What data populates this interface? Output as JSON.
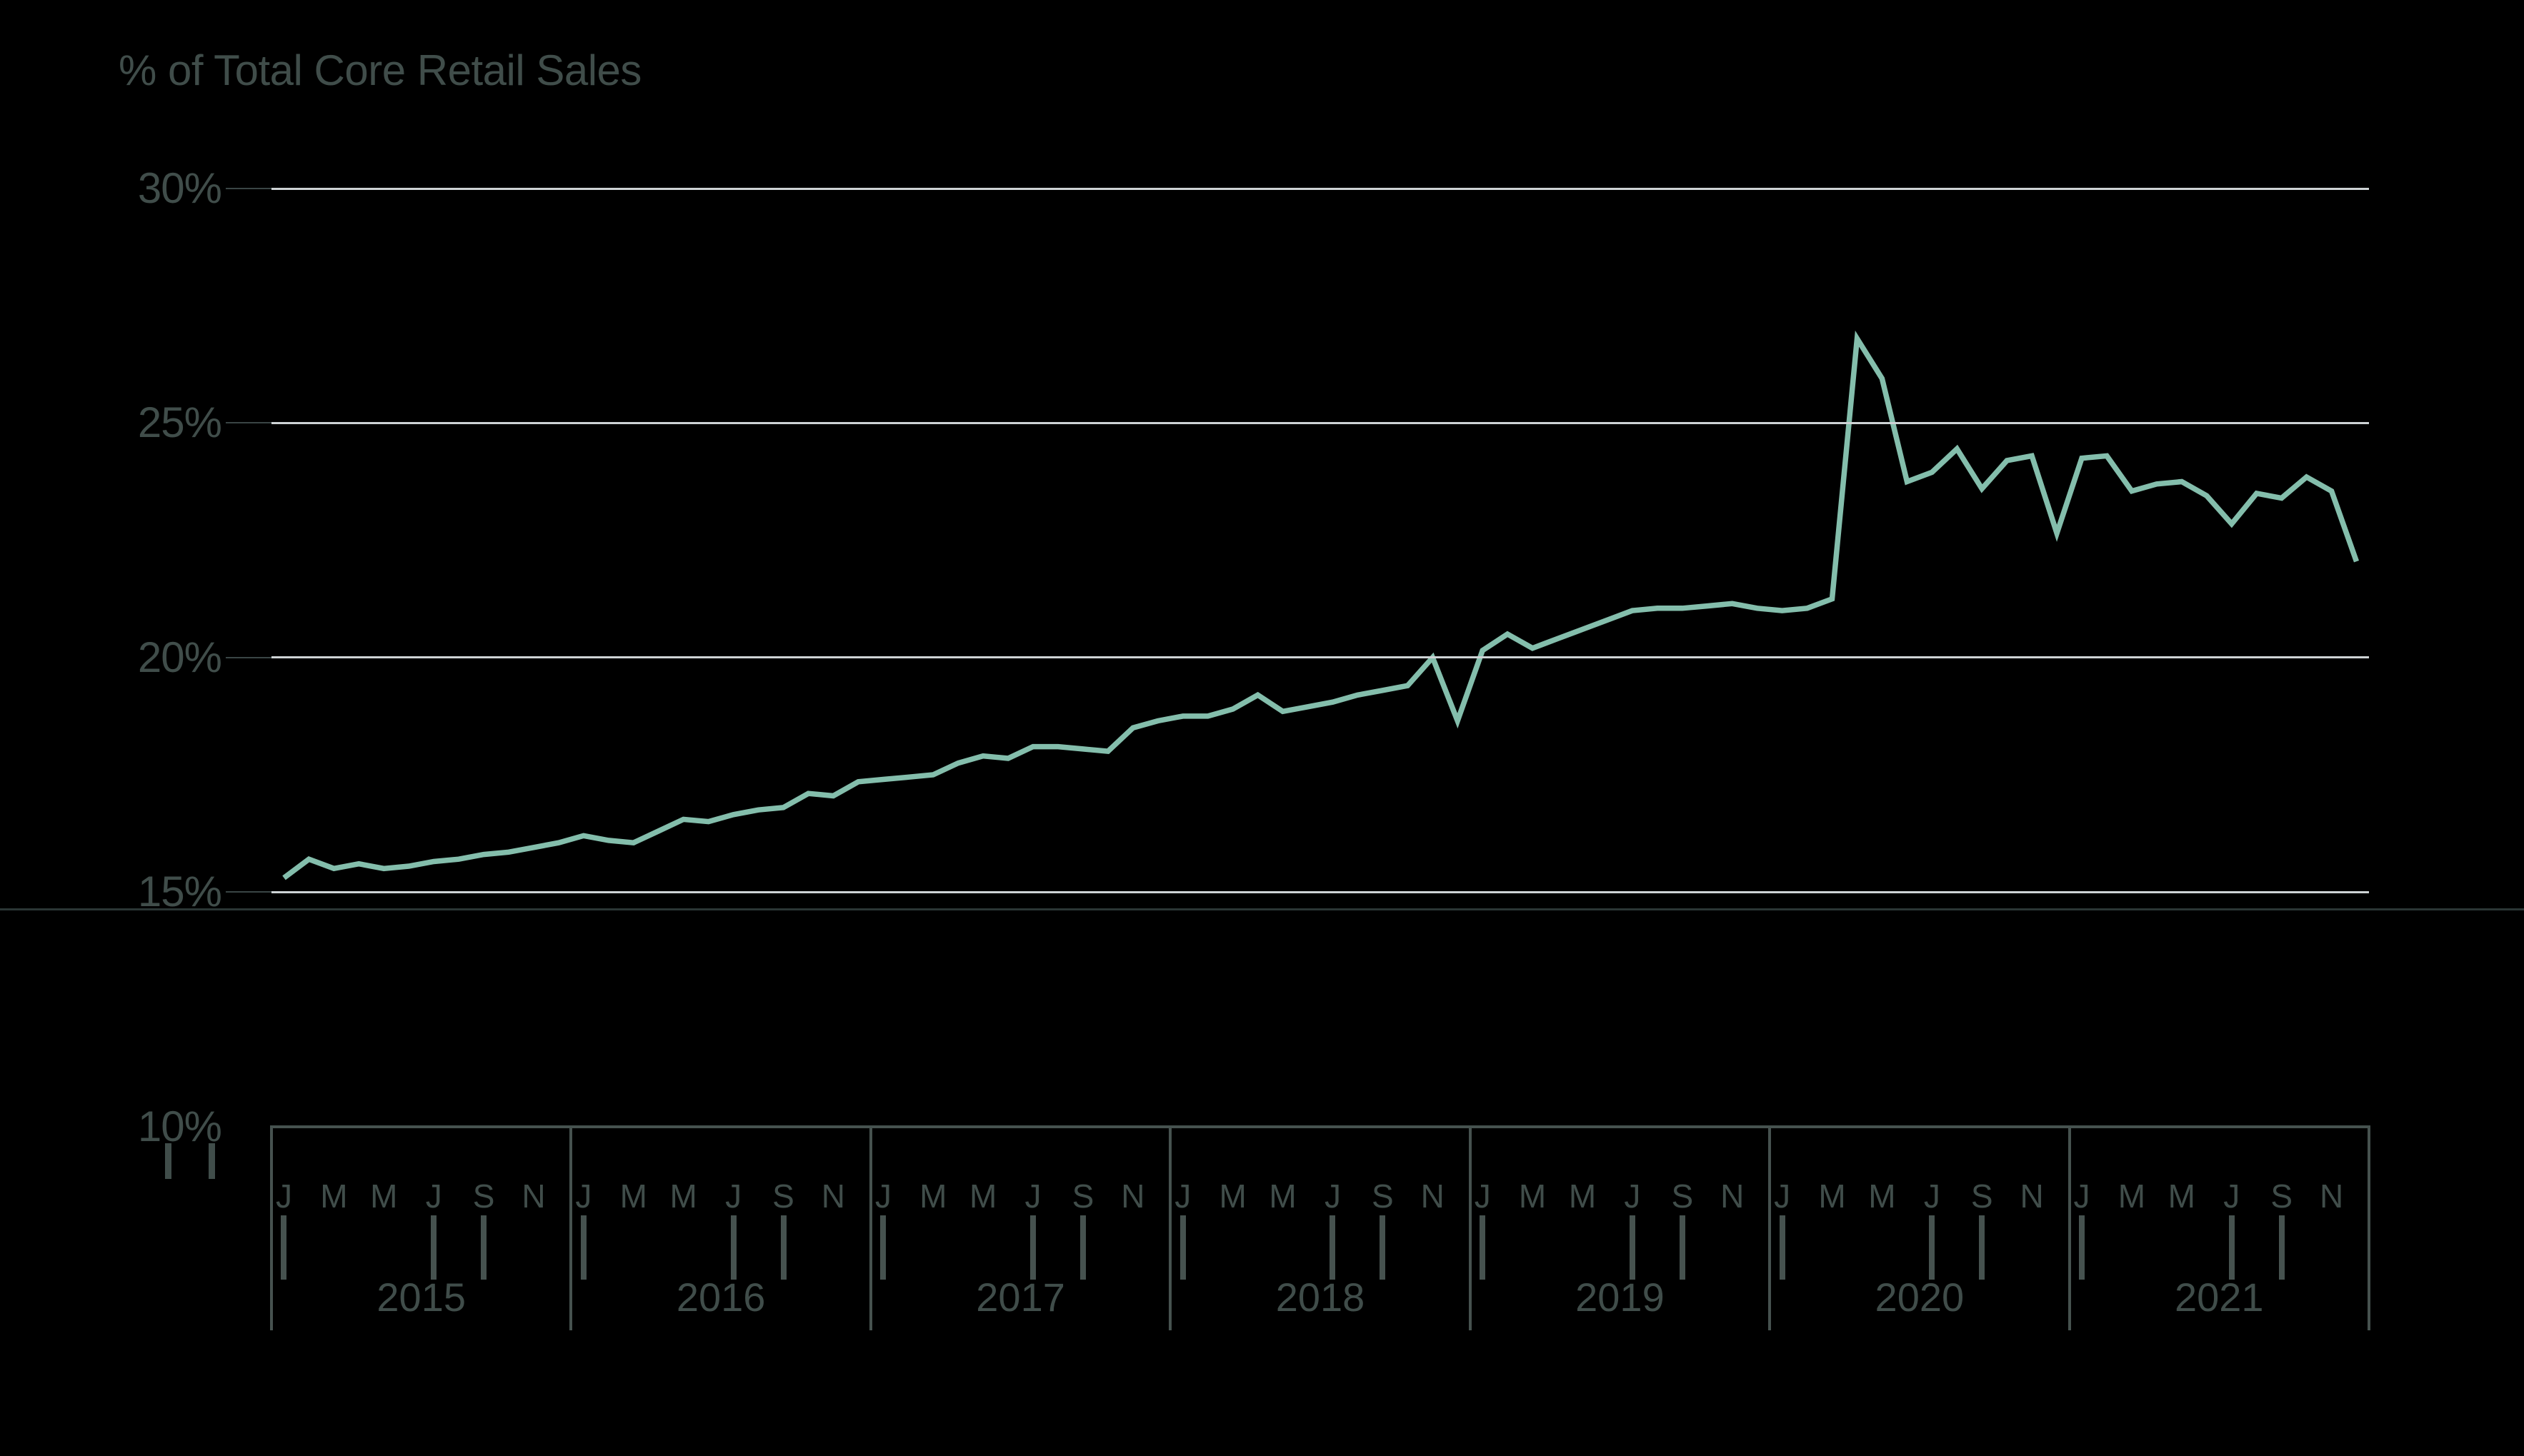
{
  "title": "% of Total Core Retail Sales",
  "colors": {
    "background": "#000000",
    "title_text": "#404d4a",
    "axis_text": "#404d4a",
    "grid_line": "#ced3d5",
    "grid_connector": "#3a4545",
    "axis_line": "#46524f",
    "series_line": "#84beac",
    "page_divider": "#2b3635"
  },
  "y_axis": {
    "tick_labels": [
      "30%",
      "25%",
      "20%",
      "15%",
      "10%"
    ],
    "tick_values": [
      30,
      25,
      20,
      15,
      10
    ]
  },
  "x_axis": {
    "month_letters": [
      "J",
      "M",
      "M",
      "J",
      "S",
      "N"
    ],
    "month_letter_slots": [
      0,
      2,
      4,
      6,
      8,
      10
    ],
    "ticked_month_slots": [
      0,
      6,
      8
    ],
    "years": [
      "2015",
      "2016",
      "2017",
      "2018",
      "2019",
      "2020",
      "2021"
    ]
  },
  "chart_data": {
    "type": "line",
    "title": "% of Total Core Retail Sales",
    "unit": "%",
    "ylim": [
      10,
      30
    ],
    "y_gridlines": [
      30,
      25,
      20,
      15
    ],
    "grid": "horizontal",
    "legend": "none",
    "frequency": "monthly",
    "x_start": "2015-01",
    "x_end": "2021-12",
    "values": [
      15.3,
      15.7,
      15.5,
      15.6,
      15.5,
      15.55,
      15.65,
      15.7,
      15.8,
      15.85,
      15.95,
      16.05,
      16.2,
      16.1,
      16.05,
      16.3,
      16.55,
      16.5,
      16.65,
      16.75,
      16.8,
      17.1,
      17.05,
      17.35,
      17.4,
      17.45,
      17.5,
      17.75,
      17.9,
      17.85,
      18.1,
      18.1,
      18.05,
      18.0,
      18.5,
      18.65,
      18.75,
      18.75,
      18.9,
      19.2,
      18.85,
      18.95,
      19.05,
      19.2,
      19.3,
      19.4,
      20.0,
      18.65,
      20.15,
      20.5,
      20.2,
      20.4,
      20.6,
      20.8,
      21.0,
      21.05,
      21.05,
      21.1,
      21.15,
      21.05,
      21.0,
      21.05,
      21.25,
      26.8,
      25.95,
      23.75,
      23.95,
      24.45,
      23.6,
      24.2,
      24.3,
      22.65,
      24.25,
      24.3,
      23.55,
      23.7,
      23.75,
      23.45,
      22.85,
      23.5,
      23.4,
      23.85,
      23.55,
      22.05
    ]
  }
}
